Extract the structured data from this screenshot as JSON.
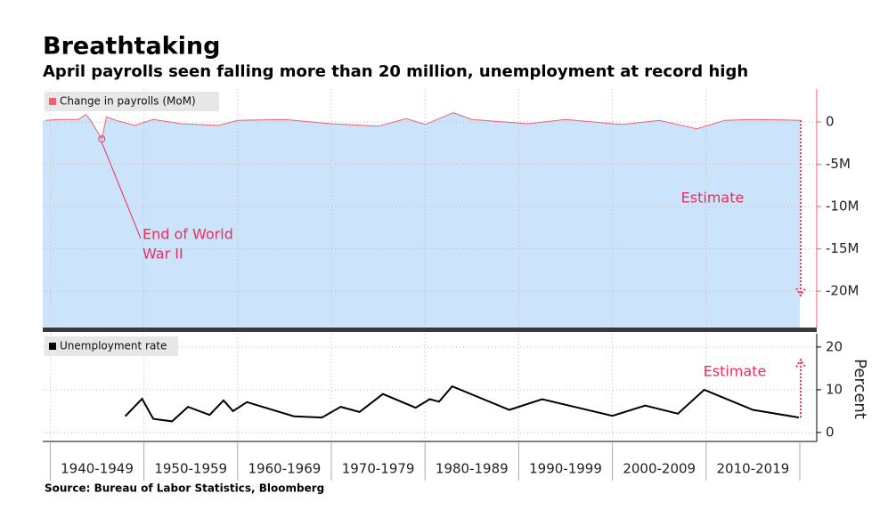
{
  "title": "Breathtaking",
  "subtitle": "April payrolls seen falling more than 20 million, unemployment at record high",
  "source": "Source: Bureau of Labor Statistics, Bloomberg",
  "chart_data": [
    {
      "type": "area",
      "legend": "Change in payrolls (MoM)",
      "color": "#f0606e",
      "fill": "#cce4fb",
      "x": [
        1939.5,
        1941,
        1943,
        1943.8,
        1944.3,
        1945.5,
        1946,
        1947,
        1949,
        1951,
        1954,
        1958,
        1960,
        1965,
        1970,
        1975,
        1978,
        1980,
        1983,
        1985,
        1991,
        1995,
        2001,
        2005,
        2009,
        2012,
        2015,
        2020
      ],
      "values": [
        0.2,
        0.3,
        0.3,
        0.9,
        0.2,
        -2.0,
        0.6,
        0.2,
        -0.4,
        0.3,
        -0.2,
        -0.4,
        0.2,
        0.3,
        -0.2,
        -0.5,
        0.4,
        -0.3,
        1.1,
        0.3,
        -0.2,
        0.3,
        -0.3,
        0.2,
        -0.8,
        0.2,
        0.3,
        0.2
      ],
      "xlim": [
        1939.2,
        2020
      ],
      "ylim": [
        -24.3,
        3.9
      ],
      "yticks": [
        0,
        {
          "value": -5,
          "label": "-5M"
        },
        {
          "value": -10,
          "label": "-10M"
        },
        {
          "value": -15,
          "label": "-15M"
        },
        {
          "value": -20,
          "label": "-20M"
        }
      ],
      "annotation": {
        "text": [
          "End of World",
          "War II"
        ],
        "point": 5
      },
      "estimate": {
        "x": 2020.1,
        "value": -20.5,
        "label": "Estimate"
      }
    },
    {
      "type": "line",
      "legend": "Unemployment rate",
      "color": "#000000",
      "x": [
        1948,
        1949.8,
        1951,
        1953,
        1954.7,
        1957,
        1958.5,
        1959.5,
        1961,
        1966,
        1969,
        1971,
        1973,
        1975.5,
        1979,
        1980.5,
        1981.5,
        1982.9,
        1989,
        1992.5,
        2000,
        2003.5,
        2007,
        2009.8,
        2015,
        2019.9
      ],
      "values": [
        3.8,
        7.9,
        3.2,
        2.6,
        6.0,
        4.1,
        7.5,
        5.0,
        7.1,
        3.8,
        3.5,
        6.0,
        4.8,
        9.0,
        5.8,
        7.8,
        7.2,
        10.8,
        5.3,
        7.8,
        3.9,
        6.3,
        4.4,
        10.0,
        5.3,
        3.5
      ],
      "xlim": [
        1939.2,
        2020
      ],
      "ylim": [
        -2.1,
        23.1
      ],
      "yticks": [
        0,
        10,
        20
      ],
      "ylabel": "Percent",
      "xticks": [
        {
          "value": 1940,
          "label": "1940-1949"
        },
        {
          "value": 1950,
          "label": "1950-1959"
        },
        {
          "value": 1960,
          "label": "1960-1969"
        },
        {
          "value": 1970,
          "label": "1970-1979"
        },
        {
          "value": 1980,
          "label": "1980-1989"
        },
        {
          "value": 1990,
          "label": "1990-1999"
        },
        {
          "value": 2000,
          "label": "2000-2009"
        },
        {
          "value": 2010,
          "label": "2010-2019"
        }
      ],
      "estimate": {
        "x": 2020.1,
        "value": 17,
        "label": "Estimate"
      }
    }
  ]
}
